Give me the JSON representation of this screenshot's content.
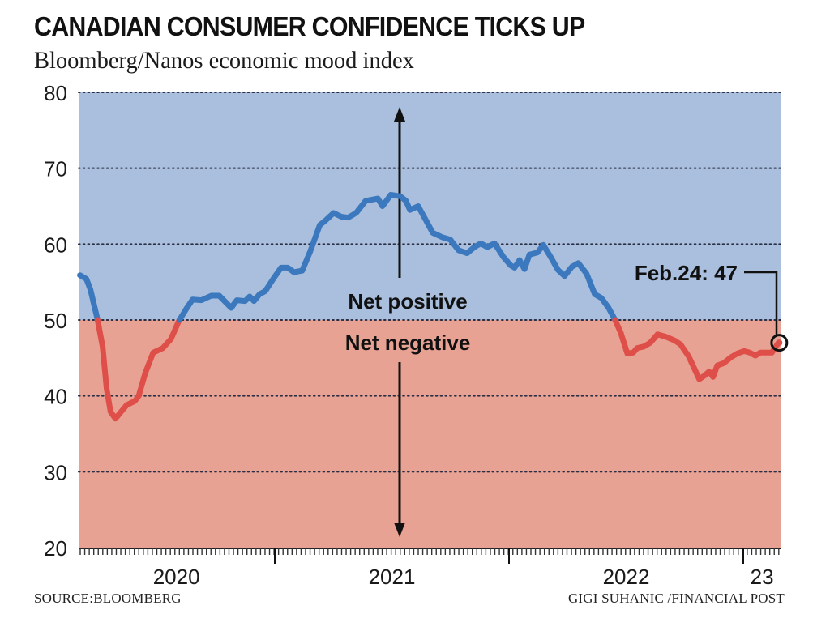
{
  "header": {
    "title": "CANADIAN CONSUMER CONFIDENCE TICKS UP",
    "subtitle": "Bloomberg/Nanos economic mood index"
  },
  "footer": {
    "source": "SOURCE:BLOOMBERG",
    "credit": "GIGI SUHANIC /FINANCIAL POST"
  },
  "colors": {
    "positive_bg": "#a9bfdd",
    "negative_bg": "#e8a294",
    "positive_line": "#3b78bd",
    "negative_line": "#df4f49",
    "grid": "#2a2f45",
    "text": "#111111"
  },
  "chart_data": {
    "type": "line",
    "title": "CANADIAN CONSUMER CONFIDENCE TICKS UP",
    "subtitle": "Bloomberg/Nanos economic mood index",
    "xlabel": "",
    "ylabel": "",
    "ylim": [
      20,
      80
    ],
    "xlim": [
      2020.17,
      2023.16
    ],
    "yticks": [
      20,
      30,
      40,
      50,
      60,
      70,
      80
    ],
    "ytick_labels": [
      "20",
      "30",
      "40",
      "50",
      "60",
      "70",
      "80"
    ],
    "xtick_labels": [
      {
        "label": "2020",
        "at": 2020.58
      },
      {
        "label": "2021",
        "at": 2021.5
      },
      {
        "label": "2022",
        "at": 2022.5
      },
      {
        "label": "23",
        "at": 2023.08
      }
    ],
    "year_boundaries": [
      2021,
      2022,
      2023
    ],
    "minor_tick_interval": "weekly",
    "grid": true,
    "threshold": 50,
    "regions": [
      {
        "label": "Net positive",
        "from": 50,
        "to": 80
      },
      {
        "label": "Net negative",
        "from": 20,
        "to": 50
      }
    ],
    "annotations": [
      {
        "text": "Net positive",
        "x": 2021.5,
        "y": 52.5
      },
      {
        "text": "Net negative",
        "x": 2021.5,
        "y": 47.1
      },
      {
        "text": "Feb.24: 47",
        "x": 2023.15,
        "y": 47,
        "type": "callout"
      }
    ],
    "series": [
      {
        "name": "Bloomberg/Nanos economic mood index",
        "x": [
          2020.168,
          2020.196,
          2020.213,
          2020.241,
          2020.265,
          2020.282,
          2020.299,
          2020.32,
          2020.344,
          2020.368,
          2020.402,
          2020.419,
          2020.447,
          2020.481,
          2020.522,
          2020.557,
          2020.591,
          2020.625,
          2020.649,
          2020.687,
          2020.729,
          2020.763,
          2020.814,
          2020.838,
          2020.873,
          2020.893,
          2020.911,
          2020.935,
          2020.959,
          2020.993,
          2021.027,
          2021.055,
          2021.082,
          2021.117,
          2021.151,
          2021.192,
          2021.216,
          2021.251,
          2021.285,
          2021.313,
          2021.347,
          2021.388,
          2021.44,
          2021.46,
          2021.495,
          2021.536,
          2021.56,
          2021.577,
          2021.612,
          2021.646,
          2021.674,
          2021.715,
          2021.749,
          2021.784,
          2021.821,
          2021.852,
          2021.88,
          2021.907,
          2021.938,
          2021.976,
          2022.007,
          2022.024,
          2022.045,
          2022.066,
          2022.087,
          2022.122,
          2022.146,
          2022.174,
          2022.209,
          2022.237,
          2022.268,
          2022.296,
          2022.331,
          2022.366,
          2022.394,
          2022.425,
          2022.453,
          2022.477,
          2022.505,
          2022.53,
          2022.547,
          2022.575,
          2022.603,
          2022.634,
          2022.669,
          2022.707,
          2022.732,
          2022.767,
          2022.791,
          2022.812,
          2022.836,
          2022.854,
          2022.871,
          2022.889,
          2022.916,
          2022.948,
          2022.976,
          2023.003,
          2023.028,
          2023.052,
          2023.073,
          2023.105,
          2023.122,
          2023.15
        ],
        "values": [
          55.9,
          55.4,
          54.0,
          50.4,
          46.5,
          41.0,
          37.9,
          37.0,
          37.9,
          38.8,
          39.3,
          40.0,
          43.0,
          45.7,
          46.3,
          47.5,
          49.9,
          51.6,
          52.7,
          52.6,
          53.2,
          53.2,
          51.6,
          52.6,
          52.5,
          53.1,
          52.5,
          53.4,
          53.8,
          55.4,
          56.9,
          56.9,
          56.3,
          56.5,
          59.0,
          62.5,
          63.1,
          64.1,
          63.6,
          63.5,
          64.1,
          65.7,
          66.0,
          65.0,
          66.5,
          66.3,
          65.7,
          64.5,
          65.0,
          63.1,
          61.5,
          60.9,
          60.6,
          59.2,
          58.8,
          59.6,
          60.1,
          59.6,
          60.1,
          58.3,
          57.2,
          56.9,
          57.9,
          56.7,
          58.6,
          58.9,
          59.9,
          58.5,
          56.6,
          55.8,
          57.0,
          57.5,
          56.1,
          53.4,
          52.9,
          51.6,
          50.0,
          48.3,
          45.6,
          45.7,
          46.3,
          46.5,
          47.0,
          48.1,
          47.8,
          47.3,
          46.8,
          45.2,
          43.6,
          42.2,
          42.7,
          43.2,
          42.5,
          44.0,
          44.3,
          45.1,
          45.6,
          45.9,
          45.7,
          45.3,
          45.7,
          45.7,
          45.7,
          47.0
        ]
      }
    ]
  }
}
